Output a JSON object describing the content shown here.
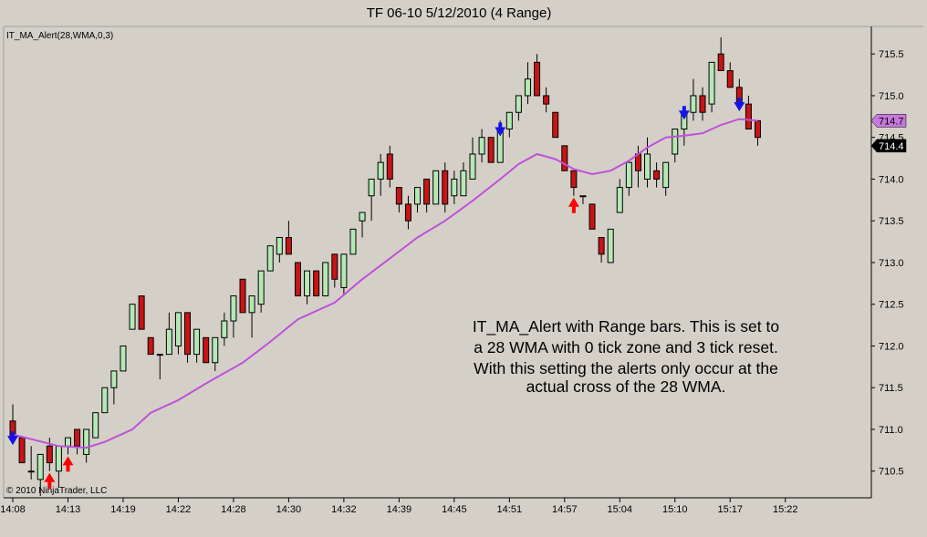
{
  "title": "TF 06-10  5/12/2010 (4 Range)",
  "indicator_label": "IT_MA_Alert(28,WMA,0,3)",
  "copyright": "© 2010 NinjaTrader, LLC",
  "annotation_lines": [
    "IT_MA_Alert with Range bars. This is set to",
    "a 28 WMA with 0 tick zone and 3 tick reset.",
    "With this setting the alerts only occur at the",
    "actual cross of the 28 WMA."
  ],
  "price_tags": [
    {
      "label": "714.7",
      "value": 714.7,
      "bg": "#c678dd",
      "fg": "#000000"
    },
    {
      "label": "714.4",
      "value": 714.4,
      "bg": "#000000",
      "fg": "#ffffff"
    }
  ],
  "colors": {
    "up_bar": "#b5e8b5",
    "down_bar": "#c81414",
    "wick": "#000000",
    "ma_line": "#c050dc",
    "arrow_up": "#ff0000",
    "arrow_down": "#1414e6",
    "panel_bg": "#d4d0c8"
  },
  "chart_data": {
    "type": "candlestick",
    "ylim": [
      710.18,
      715.83
    ],
    "grid": false,
    "y_ticks": [
      710.5,
      711.0,
      711.5,
      712.0,
      712.5,
      713.0,
      713.5,
      714.0,
      714.5,
      715.0,
      715.5
    ],
    "y_tick_labels": [
      "710.5",
      "711.0",
      "711.5",
      "712.0",
      "712.5",
      "713.0",
      "713.5",
      "714.0",
      "714.5",
      "715.0",
      "715.5"
    ],
    "x_tick_labels": [
      {
        "bar": 0,
        "label": "14:08"
      },
      {
        "bar": 6,
        "label": "14:13"
      },
      {
        "bar": 12,
        "label": "14:19"
      },
      {
        "bar": 18,
        "label": "14:22"
      },
      {
        "bar": 24,
        "label": "14:28"
      },
      {
        "bar": 30,
        "label": "14:30"
      },
      {
        "bar": 36,
        "label": "14:32"
      },
      {
        "bar": 42,
        "label": "14:39"
      },
      {
        "bar": 48,
        "label": "14:45"
      },
      {
        "bar": 54,
        "label": "14:51"
      },
      {
        "bar": 60,
        "label": "14:57"
      },
      {
        "bar": 66,
        "label": "15:04"
      },
      {
        "bar": 72,
        "label": "15:10"
      },
      {
        "bar": 78,
        "label": "15:17"
      },
      {
        "bar": 84,
        "label": "15:22"
      }
    ],
    "bars": [
      {
        "o": 711.1,
        "c": 710.9,
        "h": 711.3,
        "l": 710.9
      },
      {
        "o": 710.9,
        "c": 710.6,
        "h": 710.9,
        "l": 710.6
      },
      {
        "o": 710.5,
        "c": 710.5,
        "h": 710.8,
        "l": 710.4
      },
      {
        "o": 710.4,
        "c": 710.7,
        "h": 710.7,
        "l": 710.2
      },
      {
        "o": 710.8,
        "c": 710.6,
        "h": 710.9,
        "l": 710.5
      },
      {
        "o": 710.5,
        "c": 710.8,
        "h": 710.8,
        "l": 710.3
      },
      {
        "o": 710.8,
        "c": 710.9,
        "h": 710.9,
        "l": 710.7
      },
      {
        "o": 711.0,
        "c": 710.8,
        "h": 711.0,
        "l": 710.7
      },
      {
        "o": 710.7,
        "c": 711.0,
        "h": 711.0,
        "l": 710.6
      },
      {
        "o": 710.9,
        "c": 711.2,
        "h": 711.2,
        "l": 710.9
      },
      {
        "o": 711.2,
        "c": 711.5,
        "h": 711.5,
        "l": 711.2
      },
      {
        "o": 711.5,
        "c": 711.7,
        "h": 711.7,
        "l": 711.3
      },
      {
        "o": 711.7,
        "c": 712.0,
        "h": 712.0,
        "l": 711.7
      },
      {
        "o": 712.2,
        "c": 712.5,
        "h": 712.5,
        "l": 712.2
      },
      {
        "o": 712.6,
        "c": 712.2,
        "h": 712.6,
        "l": 712.2
      },
      {
        "o": 712.1,
        "c": 711.9,
        "h": 712.1,
        "l": 711.9
      },
      {
        "o": 711.9,
        "c": 711.9,
        "h": 711.9,
        "l": 711.6
      },
      {
        "o": 711.9,
        "c": 712.2,
        "h": 712.4,
        "l": 711.9
      },
      {
        "o": 712.0,
        "c": 712.4,
        "h": 712.4,
        "l": 711.9
      },
      {
        "o": 712.4,
        "c": 711.9,
        "h": 712.4,
        "l": 711.8
      },
      {
        "o": 711.9,
        "c": 712.2,
        "h": 712.2,
        "l": 711.8
      },
      {
        "o": 712.1,
        "c": 711.8,
        "h": 712.1,
        "l": 711.8
      },
      {
        "o": 711.8,
        "c": 712.1,
        "h": 712.1,
        "l": 711.7
      },
      {
        "o": 712.1,
        "c": 712.3,
        "h": 712.4,
        "l": 712.0
      },
      {
        "o": 712.3,
        "c": 712.6,
        "h": 712.6,
        "l": 712.1
      },
      {
        "o": 712.8,
        "c": 712.4,
        "h": 712.8,
        "l": 712.4
      },
      {
        "o": 712.4,
        "c": 712.6,
        "h": 712.6,
        "l": 712.1
      },
      {
        "o": 712.5,
        "c": 712.9,
        "h": 712.9,
        "l": 712.4
      },
      {
        "o": 712.9,
        "c": 713.2,
        "h": 713.2,
        "l": 712.9
      },
      {
        "o": 713.1,
        "c": 713.3,
        "h": 713.3,
        "l": 713.0
      },
      {
        "o": 713.3,
        "c": 713.1,
        "h": 713.5,
        "l": 713.1
      },
      {
        "o": 713.0,
        "c": 712.6,
        "h": 713.0,
        "l": 712.6
      },
      {
        "o": 712.6,
        "c": 712.9,
        "h": 712.9,
        "l": 712.5
      },
      {
        "o": 712.9,
        "c": 712.6,
        "h": 712.9,
        "l": 712.6
      },
      {
        "o": 712.6,
        "c": 713.0,
        "h": 713.0,
        "l": 712.6
      },
      {
        "o": 713.1,
        "c": 712.8,
        "h": 713.1,
        "l": 712.7
      },
      {
        "o": 712.7,
        "c": 713.1,
        "h": 713.1,
        "l": 712.6
      },
      {
        "o": 713.1,
        "c": 713.4,
        "h": 713.4,
        "l": 713.1
      },
      {
        "o": 713.5,
        "c": 713.6,
        "h": 713.6,
        "l": 713.3
      },
      {
        "o": 713.8,
        "c": 714.0,
        "h": 714.0,
        "l": 713.5
      },
      {
        "o": 714.0,
        "c": 714.2,
        "h": 714.3,
        "l": 713.8
      },
      {
        "o": 714.3,
        "c": 714.0,
        "h": 714.4,
        "l": 713.9
      },
      {
        "o": 713.9,
        "c": 713.7,
        "h": 713.9,
        "l": 713.6
      },
      {
        "o": 713.7,
        "c": 713.5,
        "h": 713.8,
        "l": 713.4
      },
      {
        "o": 713.7,
        "c": 713.9,
        "h": 713.9,
        "l": 713.6
      },
      {
        "o": 714.0,
        "c": 713.7,
        "h": 714.0,
        "l": 713.6
      },
      {
        "o": 713.7,
        "c": 714.1,
        "h": 714.1,
        "l": 713.7
      },
      {
        "o": 714.1,
        "c": 713.7,
        "h": 714.2,
        "l": 713.6
      },
      {
        "o": 713.8,
        "c": 714.0,
        "h": 714.1,
        "l": 713.7
      },
      {
        "o": 713.8,
        "c": 714.1,
        "h": 714.2,
        "l": 713.8
      },
      {
        "o": 714.0,
        "c": 714.3,
        "h": 714.5,
        "l": 714.0
      },
      {
        "o": 714.3,
        "c": 714.5,
        "h": 714.6,
        "l": 714.2
      },
      {
        "o": 714.5,
        "c": 714.2,
        "h": 714.5,
        "l": 714.2
      },
      {
        "o": 714.2,
        "c": 714.6,
        "h": 714.7,
        "l": 714.2
      },
      {
        "o": 714.6,
        "c": 714.8,
        "h": 714.8,
        "l": 714.5
      },
      {
        "o": 714.8,
        "c": 715.0,
        "h": 715.0,
        "l": 714.7
      },
      {
        "o": 715.0,
        "c": 715.2,
        "h": 715.4,
        "l": 714.9
      },
      {
        "o": 715.4,
        "c": 715.0,
        "h": 715.5,
        "l": 715.0
      },
      {
        "o": 715.0,
        "c": 714.9,
        "h": 715.1,
        "l": 714.8
      },
      {
        "o": 714.8,
        "c": 714.5,
        "h": 714.8,
        "l": 714.5
      },
      {
        "o": 714.4,
        "c": 714.1,
        "h": 714.4,
        "l": 714.1
      },
      {
        "o": 714.1,
        "c": 713.9,
        "h": 714.1,
        "l": 713.8
      },
      {
        "o": 713.8,
        "c": 713.8,
        "h": 713.8,
        "l": 713.7
      },
      {
        "o": 713.7,
        "c": 713.4,
        "h": 713.7,
        "l": 713.4
      },
      {
        "o": 713.3,
        "c": 713.1,
        "h": 713.3,
        "l": 713.0
      },
      {
        "o": 713.0,
        "c": 713.4,
        "h": 713.4,
        "l": 713.0
      },
      {
        "o": 713.6,
        "c": 713.9,
        "h": 714.0,
        "l": 713.6
      },
      {
        "o": 713.9,
        "c": 714.2,
        "h": 714.2,
        "l": 713.8
      },
      {
        "o": 714.3,
        "c": 714.1,
        "h": 714.4,
        "l": 713.9
      },
      {
        "o": 714.0,
        "c": 714.3,
        "h": 714.5,
        "l": 713.9
      },
      {
        "o": 714.1,
        "c": 714.0,
        "h": 714.2,
        "l": 713.9
      },
      {
        "o": 713.9,
        "c": 714.2,
        "h": 714.2,
        "l": 713.8
      },
      {
        "o": 714.3,
        "c": 714.6,
        "h": 714.6,
        "l": 714.2
      },
      {
        "o": 714.6,
        "c": 714.8,
        "h": 714.8,
        "l": 714.4
      },
      {
        "o": 714.8,
        "c": 715.0,
        "h": 715.2,
        "l": 714.7
      },
      {
        "o": 715.0,
        "c": 714.8,
        "h": 715.1,
        "l": 714.7
      },
      {
        "o": 714.9,
        "c": 715.4,
        "h": 715.4,
        "l": 714.8
      },
      {
        "o": 715.5,
        "c": 715.3,
        "h": 715.7,
        "l": 715.3
      },
      {
        "o": 715.3,
        "c": 715.1,
        "h": 715.4,
        "l": 715.1
      },
      {
        "o": 715.1,
        "c": 714.9,
        "h": 715.2,
        "l": 714.9
      },
      {
        "o": 714.9,
        "c": 714.6,
        "h": 715.0,
        "l": 714.6
      },
      {
        "o": 714.7,
        "c": 714.5,
        "h": 714.7,
        "l": 714.4
      }
    ],
    "wma": [
      [
        0,
        710.94
      ],
      [
        5,
        710.8
      ],
      [
        8,
        710.78
      ],
      [
        10,
        710.85
      ],
      [
        13,
        711.0
      ],
      [
        15,
        711.2
      ],
      [
        18,
        711.35
      ],
      [
        21,
        711.55
      ],
      [
        25,
        711.8
      ],
      [
        28,
        712.05
      ],
      [
        31,
        712.32
      ],
      [
        35,
        712.52
      ],
      [
        38,
        712.8
      ],
      [
        41,
        713.05
      ],
      [
        44,
        713.3
      ],
      [
        47,
        713.5
      ],
      [
        50,
        713.74
      ],
      [
        53,
        714.0
      ],
      [
        55,
        714.18
      ],
      [
        57,
        714.3
      ],
      [
        59,
        714.24
      ],
      [
        61,
        714.12
      ],
      [
        63,
        714.06
      ],
      [
        65,
        714.1
      ],
      [
        67,
        714.22
      ],
      [
        69,
        714.38
      ],
      [
        71,
        714.5
      ],
      [
        73,
        714.52
      ],
      [
        75,
        714.55
      ],
      [
        77,
        714.65
      ],
      [
        79,
        714.72
      ],
      [
        81,
        714.7
      ]
    ],
    "alerts": [
      {
        "bar": 0,
        "dir": "down"
      },
      {
        "bar": 4,
        "dir": "up"
      },
      {
        "bar": 6,
        "dir": "up"
      },
      {
        "bar": 53,
        "dir": "down"
      },
      {
        "bar": 61,
        "dir": "up"
      },
      {
        "bar": 73,
        "dir": "down"
      },
      {
        "bar": 79,
        "dir": "down"
      }
    ]
  }
}
